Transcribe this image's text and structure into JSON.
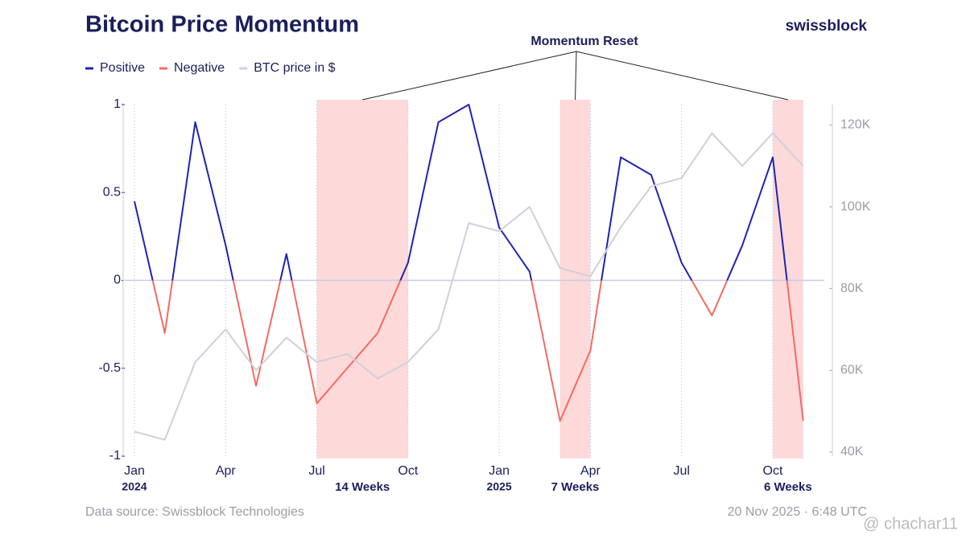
{
  "chart_data": {
    "type": "line",
    "title": "Bitcoin Price Momentum",
    "brand": "swissblock",
    "annotation": "Momentum Reset",
    "source": "Data source: Swissblock Technologies",
    "timestamp": "20 Nov 2025 · 6:48 UTC",
    "watermark": "@ chachar11",
    "x": [
      "2024-01",
      "2024-02",
      "2024-03",
      "2024-04",
      "2024-05",
      "2024-06",
      "2024-07",
      "2024-08",
      "2024-09",
      "2024-10",
      "2024-11",
      "2024-12",
      "2025-01",
      "2025-02",
      "2025-03",
      "2025-04",
      "2025-05",
      "2025-06",
      "2025-07",
      "2025-08",
      "2025-09",
      "2025-10",
      "2025-11"
    ],
    "xticks": [
      {
        "value": "2024-01",
        "label": "Jan"
      },
      {
        "value": "2024-04",
        "label": "Apr"
      },
      {
        "value": "2024-07",
        "label": "Jul"
      },
      {
        "value": "2024-10",
        "label": "Oct"
      },
      {
        "value": "2025-01",
        "label": "Jan"
      },
      {
        "value": "2025-04",
        "label": "Apr"
      },
      {
        "value": "2025-07",
        "label": "Jul"
      },
      {
        "value": "2025-10",
        "label": "Oct"
      }
    ],
    "year_labels": [
      {
        "value": "2024-01",
        "label": "2024"
      },
      {
        "value": "2025-01",
        "label": "2025"
      }
    ],
    "series": [
      {
        "name": "Positive",
        "color": "#1f24b0",
        "negative_name": "Negative",
        "negative_color": "#f26b63",
        "values": [
          0.45,
          -0.3,
          0.9,
          0.2,
          -0.6,
          0.15,
          -0.7,
          -0.5,
          -0.3,
          0.1,
          0.9,
          1,
          0.3,
          0.05,
          -0.8,
          -0.4,
          0.7,
          0.6,
          0.1,
          -0.2,
          0.2,
          0.7,
          -0.8
        ]
      },
      {
        "name": "BTC price in $",
        "color": "#cfd0dc",
        "axis": "y2",
        "values": [
          45000,
          43000,
          62000,
          70000,
          60000,
          68000,
          62000,
          64000,
          58000,
          62000,
          70000,
          96000,
          94000,
          100000,
          85000,
          83000,
          95000,
          105000,
          107000,
          118000,
          110000,
          118000,
          110000
        ]
      }
    ],
    "ylim": [
      -1,
      1
    ],
    "yticks": [
      1,
      0.5,
      0,
      -0.5,
      -1
    ],
    "y2lim": [
      39000,
      125000
    ],
    "y2ticks": [
      {
        "value": 120000,
        "label": "120K"
      },
      {
        "value": 100000,
        "label": "100K"
      },
      {
        "value": 80000,
        "label": "80K"
      },
      {
        "value": 60000,
        "label": "60K"
      },
      {
        "value": 40000,
        "label": "40K"
      }
    ],
    "resets": [
      {
        "start": "2024-07",
        "end": "2024-10",
        "label": "14 Weeks"
      },
      {
        "start": "2025-03",
        "end": "2025-04",
        "label": "7 Weeks"
      },
      {
        "start": "2025-10",
        "end": "2025-11",
        "label": "6 Weeks"
      }
    ],
    "reset_color": "#fdd9d9",
    "grid": true
  }
}
